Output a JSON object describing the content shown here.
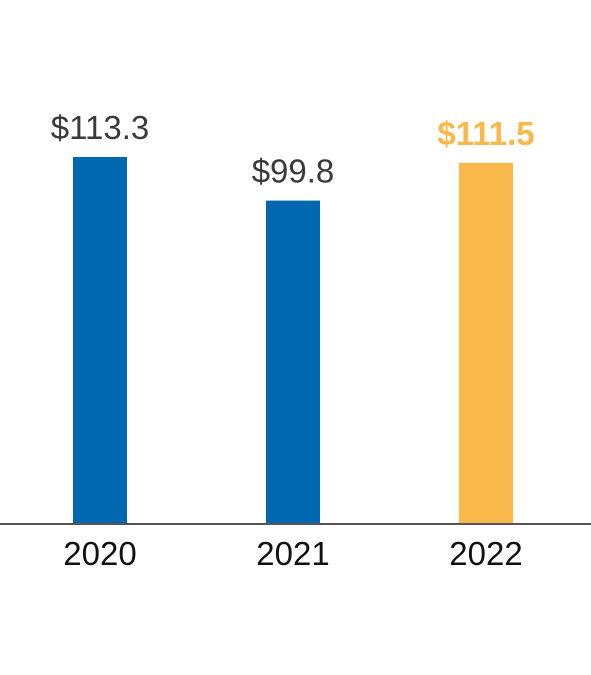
{
  "chart_data": {
    "type": "bar",
    "categories": [
      "2020",
      "2021",
      "2022"
    ],
    "values": [
      113.3,
      99.8,
      111.5
    ],
    "value_labels": [
      "$113.3",
      "$99.8",
      "$111.5"
    ],
    "bar_colors": [
      "#0067B1",
      "#0067B1",
      "#F9B94A"
    ],
    "value_label_colors": [
      "#3a3a3a",
      "#3a3a3a",
      "#F9B94A"
    ],
    "value_label_bold": [
      false,
      false,
      true
    ],
    "title": "",
    "xlabel": "",
    "ylabel": "",
    "ylim": [
      0,
      113.3
    ],
    "grid": false,
    "legend": "none"
  }
}
